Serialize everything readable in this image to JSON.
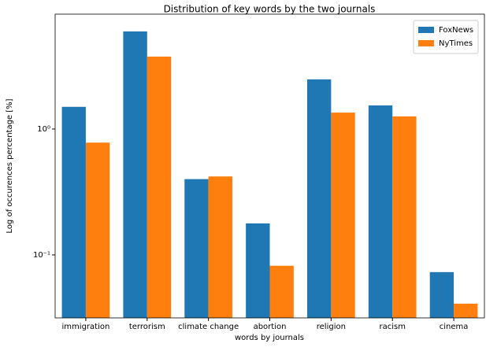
{
  "chart_data": {
    "type": "bar",
    "title": "Distribution of key words by the two journals",
    "x_label": "words by journals",
    "y_label": "Log of occurences percentage [%]",
    "y_scale": "log",
    "categories": [
      "immigration",
      "terrorism",
      "climate change",
      "abortion",
      "religion",
      "racism",
      "cinema"
    ],
    "series": [
      {
        "name": "FoxNews",
        "color": "#1f77b4",
        "values": [
          1.5,
          5.96,
          0.4,
          0.178,
          2.48,
          1.54,
          0.073
        ]
      },
      {
        "name": "NyTimes",
        "color": "#ff7f0e",
        "values": [
          0.78,
          3.76,
          0.42,
          0.082,
          1.35,
          1.26,
          0.041
        ]
      }
    ],
    "ylim": [
      0.0316,
      8.17
    ],
    "yticks": [
      {
        "value": 0.1,
        "label": "10⁻¹"
      },
      {
        "value": 1,
        "label": "10⁰"
      }
    ],
    "legend": "upper right"
  }
}
